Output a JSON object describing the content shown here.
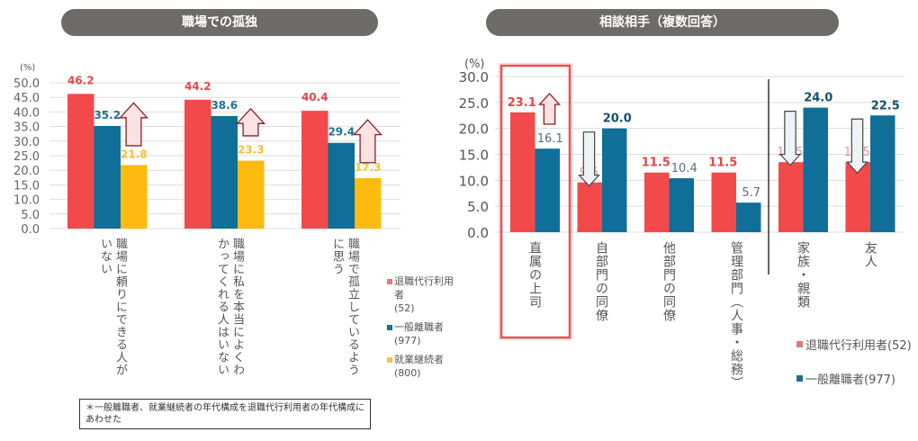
{
  "chart_data": [
    {
      "type": "bar",
      "title": "職場での孤独",
      "ylabel": "(%)",
      "ylim": [
        0,
        50
      ],
      "yticks": [
        "0.0",
        "5.0",
        "10.0",
        "15.0",
        "20.0",
        "25.0",
        "30.0",
        "35.0",
        "40.0",
        "45.0",
        "50.0"
      ],
      "grid": true,
      "legend_position": "right",
      "categories": [
        "職場に頼りにできる人が\nいない",
        "職場に私を本当によくわ\nかってくれる人はいない",
        "職場で孤立しているよう\nに思う"
      ],
      "series": [
        {
          "name": "退職代行利用者(52)",
          "legend_label": "退職代行利用者\n(52)",
          "color": "#f24a4b",
          "label_color": "#e0474a",
          "values": [
            46.2,
            44.2,
            40.4
          ],
          "labels": [
            "46.2",
            "44.2",
            "40.4"
          ]
        },
        {
          "name": "一般離職者(977)",
          "legend_label": "一般離職者\n(977)",
          "color": "#106f99",
          "label_color": "#1e6f93",
          "values": [
            35.2,
            38.6,
            29.4
          ],
          "labels": [
            "35.2",
            "38.6",
            "29.4"
          ]
        },
        {
          "name": "就業継続者(800)",
          "legend_label": "就業継続者\n(800)",
          "color": "#fdbb0f",
          "label_color": "#f5c030",
          "values": [
            21.8,
            23.3,
            17.3
          ],
          "labels": [
            "21.8",
            "23.3",
            "17.3"
          ]
        }
      ],
      "annotations": {
        "arrows": [
          "up",
          "up",
          "up"
        ],
        "arrow_color": "#8a1f2a",
        "arrow_fill": "#fbe3e3"
      },
      "footnote": "＊一般離職者、就業継続者の年代構成を退職代行利用者の年代構成にあわせた"
    },
    {
      "type": "bar",
      "title": "相談相手（複数回答）",
      "ylabel": "(%)",
      "ylim": [
        0,
        30
      ],
      "yticks": [
        "0.0",
        "5.0",
        "10.0",
        "15.0",
        "20.0",
        "25.0",
        "30.0"
      ],
      "grid": true,
      "legend_position": "bottom-right",
      "categories": [
        "直属の上司",
        "自部門の同僚",
        "他部門の同僚",
        "管理部門（人事・総務）",
        "家族・親類",
        "友人"
      ],
      "highlighted_category": "直属の上司",
      "highlight_color": "#e83c3f",
      "series": [
        {
          "name": "退職代行利用者(52)",
          "color": "#f24a4b",
          "values": [
            23.1,
            9.6,
            11.5,
            11.5,
            13.5,
            13.5
          ],
          "labels": [
            "23.1",
            "9.6",
            "11.5",
            "11.5",
            "13.5",
            "13.5"
          ],
          "label_emphasis": [
            true,
            false,
            true,
            true,
            false,
            false
          ]
        },
        {
          "name": "一般離職者(977)",
          "color": "#106f99",
          "values": [
            16.1,
            20.0,
            10.4,
            5.7,
            24.0,
            22.5
          ],
          "labels": [
            "16.1",
            "20.0",
            "10.4",
            "5.7",
            "24.0",
            "22.5"
          ],
          "label_emphasis": [
            false,
            true,
            false,
            false,
            true,
            true
          ]
        }
      ],
      "annotations": {
        "arrows": [
          "up",
          "down",
          null,
          null,
          "down",
          "down"
        ],
        "divider_before_category": "家族・親類"
      }
    }
  ]
}
